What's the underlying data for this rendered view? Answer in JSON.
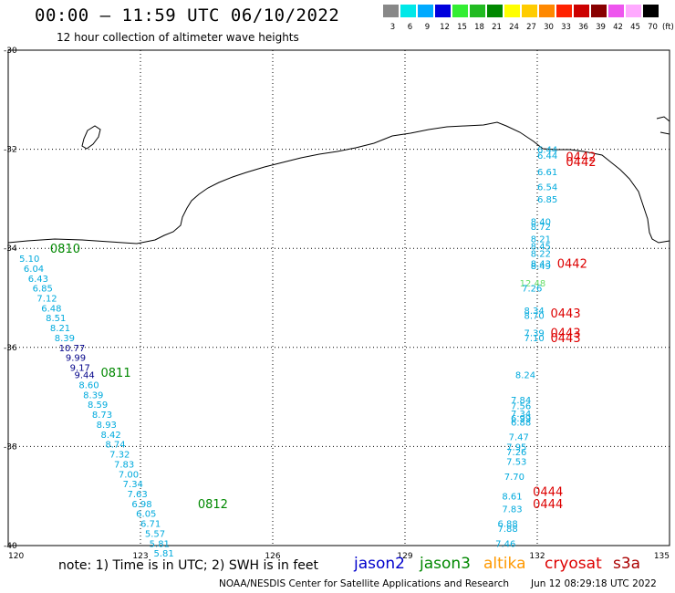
{
  "header": {
    "title": "00:00 – 11:59 UTC 06/10/2022",
    "subtitle": "12 hour collection of altimeter wave heights"
  },
  "colorbar": {
    "unit": "(ft)",
    "colors": [
      "#888888",
      "#00e8e8",
      "#00aaff",
      "#0000dd",
      "#33ee33",
      "#22bb22",
      "#008800",
      "#ffff00",
      "#ffcc00",
      "#ff8800",
      "#ff2200",
      "#cc0000",
      "#880000",
      "#ee55ee",
      "#ffaaff",
      "#000000"
    ],
    "ticks": [
      "3",
      "6",
      "9",
      "12",
      "15",
      "18",
      "21",
      "24",
      "27",
      "30",
      "33",
      "36",
      "39",
      "42",
      "45",
      "70"
    ]
  },
  "map": {
    "lon_labels": [
      "120",
      "123",
      "126",
      "129",
      "132",
      "135"
    ],
    "lat_labels": [
      "-30",
      "-32",
      "-34",
      "-36",
      "-38",
      "-40"
    ],
    "colors": {
      "jason2": "#0000cc",
      "jason3": "#008800",
      "altika": "#ff9900",
      "cryosat": "#dd0000",
      "s3a": "#aa0000",
      "cyan": "#00aadd",
      "navy": "#000088",
      "light_green": "#66dd66"
    },
    "pass_labels": [
      {
        "text": "0810",
        "sat": "jason3",
        "lon": 120.95,
        "lat": -34.0
      },
      {
        "text": "0811",
        "sat": "jason3",
        "lon": 122.1,
        "lat": -36.5
      },
      {
        "text": "0812",
        "sat": "jason3",
        "lon": 124.3,
        "lat": -39.15
      },
      {
        "text": "0442",
        "sat": "cryosat",
        "lon": 132.65,
        "lat": -32.15
      },
      {
        "text": "0442",
        "sat": "cryosat",
        "lon": 132.65,
        "lat": -32.25
      },
      {
        "text": "0442",
        "sat": "cryosat",
        "lon": 132.45,
        "lat": -34.3
      },
      {
        "text": "0443",
        "sat": "cryosat",
        "lon": 132.3,
        "lat": -35.3
      },
      {
        "text": "0443",
        "sat": "cryosat",
        "lon": 132.3,
        "lat": -35.7
      },
      {
        "text": "0443",
        "sat": "cryosat",
        "lon": 132.3,
        "lat": -35.8
      },
      {
        "text": "0444",
        "sat": "cryosat",
        "lon": 131.9,
        "lat": -38.9
      },
      {
        "text": "0444",
        "sat": "cryosat",
        "lon": 131.9,
        "lat": -39.15
      }
    ],
    "swh_track_west": [
      {
        "v": "5.10",
        "c": "cyan",
        "lon": 120.25,
        "lat": -34.2
      },
      {
        "v": "6.04",
        "c": "cyan",
        "lon": 120.35,
        "lat": -34.4
      },
      {
        "v": "6.43",
        "c": "cyan",
        "lon": 120.45,
        "lat": -34.6
      },
      {
        "v": "6.85",
        "c": "cyan",
        "lon": 120.55,
        "lat": -34.8
      },
      {
        "v": "7.12",
        "c": "cyan",
        "lon": 120.65,
        "lat": -35.0
      },
      {
        "v": "6.48",
        "c": "cyan",
        "lon": 120.75,
        "lat": -35.2
      },
      {
        "v": "8.51",
        "c": "cyan",
        "lon": 120.85,
        "lat": -35.4
      },
      {
        "v": "8.21",
        "c": "cyan",
        "lon": 120.95,
        "lat": -35.6
      },
      {
        "v": "8.39",
        "c": "cyan",
        "lon": 121.05,
        "lat": -35.8
      },
      {
        "v": "10.77",
        "c": "navy",
        "lon": 121.15,
        "lat": -36.0
      },
      {
        "v": "9.99",
        "c": "navy",
        "lon": 121.3,
        "lat": -36.2
      },
      {
        "v": "9.17",
        "c": "navy",
        "lon": 121.4,
        "lat": -36.4
      },
      {
        "v": "9.44",
        "c": "navy",
        "lon": 121.5,
        "lat": -36.55
      },
      {
        "v": "8.60",
        "c": "cyan",
        "lon": 121.6,
        "lat": -36.75
      },
      {
        "v": "8.39",
        "c": "cyan",
        "lon": 121.7,
        "lat": -36.95
      },
      {
        "v": "8.59",
        "c": "cyan",
        "lon": 121.8,
        "lat": -37.15
      },
      {
        "v": "8.73",
        "c": "cyan",
        "lon": 121.9,
        "lat": -37.35
      },
      {
        "v": "8.93",
        "c": "cyan",
        "lon": 122.0,
        "lat": -37.55
      },
      {
        "v": "8.42",
        "c": "cyan",
        "lon": 122.1,
        "lat": -37.75
      },
      {
        "v": "8.74",
        "c": "cyan",
        "lon": 122.2,
        "lat": -37.95
      },
      {
        "v": "7.32",
        "c": "cyan",
        "lon": 122.3,
        "lat": -38.15
      },
      {
        "v": "7.83",
        "c": "cyan",
        "lon": 122.4,
        "lat": -38.35
      },
      {
        "v": "7.00",
        "c": "cyan",
        "lon": 122.5,
        "lat": -38.55
      },
      {
        "v": "7.34",
        "c": "cyan",
        "lon": 122.6,
        "lat": -38.75
      },
      {
        "v": "7.63",
        "c": "cyan",
        "lon": 122.7,
        "lat": -38.95
      },
      {
        "v": "6.98",
        "c": "cyan",
        "lon": 122.8,
        "lat": -39.15
      },
      {
        "v": "6.05",
        "c": "cyan",
        "lon": 122.9,
        "lat": -39.35
      },
      {
        "v": "6.71",
        "c": "cyan",
        "lon": 123.0,
        "lat": -39.55
      },
      {
        "v": "5.57",
        "c": "cyan",
        "lon": 123.1,
        "lat": -39.75
      },
      {
        "v": "5.81",
        "c": "cyan",
        "lon": 123.2,
        "lat": -39.95
      },
      {
        "v": "5.81",
        "c": "cyan",
        "lon": 123.3,
        "lat": -40.15
      }
    ],
    "swh_track_east": [
      {
        "v": "6.44",
        "c": "cyan",
        "lon": 132.0,
        "lat": -32.0
      },
      {
        "v": "6.44",
        "c": "cyan",
        "lon": 132.0,
        "lat": -32.12
      },
      {
        "v": "6.61",
        "c": "cyan",
        "lon": 132.0,
        "lat": -32.45
      },
      {
        "v": "6.54",
        "c": "cyan",
        "lon": 132.0,
        "lat": -32.75
      },
      {
        "v": "6.85",
        "c": "cyan",
        "lon": 132.0,
        "lat": -33.0
      },
      {
        "v": "8.40",
        "c": "cyan",
        "lon": 131.85,
        "lat": -33.45
      },
      {
        "v": "8.72",
        "c": "cyan",
        "lon": 131.85,
        "lat": -33.55
      },
      {
        "v": "8.21",
        "c": "cyan",
        "lon": 131.85,
        "lat": -33.8
      },
      {
        "v": "8.45",
        "c": "cyan",
        "lon": 131.85,
        "lat": -33.95
      },
      {
        "v": "8.22",
        "c": "cyan",
        "lon": 131.85,
        "lat": -34.1
      },
      {
        "v": "8.43",
        "c": "cyan",
        "lon": 131.85,
        "lat": -34.3
      },
      {
        "v": "8.49",
        "c": "cyan",
        "lon": 131.85,
        "lat": -34.35
      },
      {
        "v": "12.48",
        "c": "light_green",
        "lon": 131.6,
        "lat": -34.7
      },
      {
        "v": "7.26",
        "c": "cyan",
        "lon": 131.65,
        "lat": -34.8
      },
      {
        "v": "8.34",
        "c": "cyan",
        "lon": 131.7,
        "lat": -35.25
      },
      {
        "v": "8.70",
        "c": "cyan",
        "lon": 131.7,
        "lat": -35.35
      },
      {
        "v": "7.39",
        "c": "cyan",
        "lon": 131.7,
        "lat": -35.7
      },
      {
        "v": "7.10",
        "c": "cyan",
        "lon": 131.7,
        "lat": -35.8
      },
      {
        "v": "8.24",
        "c": "cyan",
        "lon": 131.5,
        "lat": -36.55
      },
      {
        "v": "7.84",
        "c": "cyan",
        "lon": 131.4,
        "lat": -37.05
      },
      {
        "v": "7.56",
        "c": "cyan",
        "lon": 131.4,
        "lat": -37.17
      },
      {
        "v": "7.34",
        "c": "cyan",
        "lon": 131.4,
        "lat": -37.33
      },
      {
        "v": "6.99",
        "c": "cyan",
        "lon": 131.4,
        "lat": -37.42
      },
      {
        "v": "6.88",
        "c": "cyan",
        "lon": 131.4,
        "lat": -37.5
      },
      {
        "v": "7.47",
        "c": "cyan",
        "lon": 131.35,
        "lat": -37.8
      },
      {
        "v": "7.95",
        "c": "cyan",
        "lon": 131.3,
        "lat": -38.0
      },
      {
        "v": "7.26",
        "c": "cyan",
        "lon": 131.3,
        "lat": -38.1
      },
      {
        "v": "7.53",
        "c": "cyan",
        "lon": 131.3,
        "lat": -38.3
      },
      {
        "v": "7.70",
        "c": "cyan",
        "lon": 131.25,
        "lat": -38.6
      },
      {
        "v": "8.61",
        "c": "cyan",
        "lon": 131.2,
        "lat": -39.0
      },
      {
        "v": "7.83",
        "c": "cyan",
        "lon": 131.2,
        "lat": -39.25
      },
      {
        "v": "6.88",
        "c": "cyan",
        "lon": 131.1,
        "lat": -39.55
      },
      {
        "v": "7.88",
        "c": "cyan",
        "lon": 131.1,
        "lat": -39.65
      },
      {
        "v": "7.46",
        "c": "cyan",
        "lon": 131.05,
        "lat": -39.95
      }
    ]
  },
  "footer": {
    "note": "note:  1) Time is in UTC; 2) SWH is in feet",
    "legend": [
      {
        "label": "jason2",
        "color": "#0000cc"
      },
      {
        "label": "jason3",
        "color": "#008800"
      },
      {
        "label": "altika",
        "color": "#ff9900"
      },
      {
        "label": "cryosat",
        "color": "#dd0000"
      },
      {
        "label": "s3a",
        "color": "#aa0000"
      }
    ],
    "credit": "NOAA/NESDIS Center for Satellite Applications and Research",
    "timestamp": "Jun 12 08:29:18 UTC 2022"
  }
}
